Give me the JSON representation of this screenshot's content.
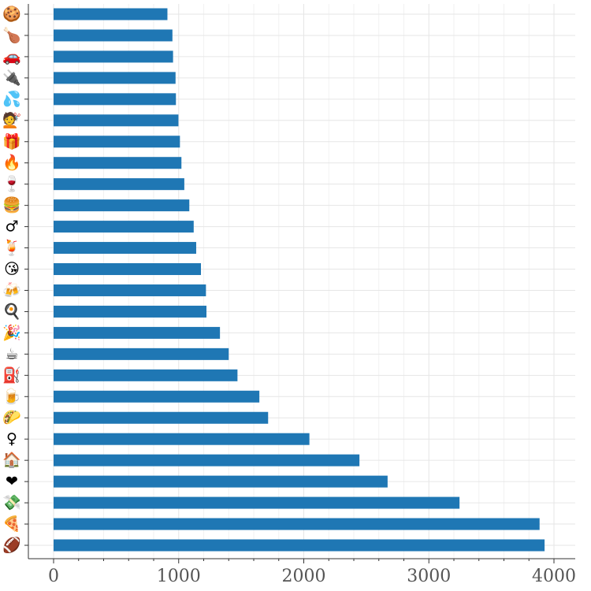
{
  "chart_data": {
    "type": "bar",
    "orientation": "horizontal",
    "title": "",
    "xlabel": "",
    "ylabel": "",
    "xlim": [
      0,
      4000
    ],
    "x_ticks": [
      0,
      1000,
      2000,
      3000,
      4000
    ],
    "x_tick_labels": [
      "0",
      "1000",
      "2000",
      "3000",
      "4000"
    ],
    "grid": true,
    "bar_color": "#1f77b4",
    "categories": [
      "🍪",
      "🍗",
      "🚗",
      "🔌",
      "💦",
      "💇",
      "🎁",
      "🔥",
      "🍷",
      "🍔",
      "♂",
      "🍹",
      "😘",
      "🍻",
      "🍳",
      "🎉",
      "☕",
      "⛽",
      "🍺",
      "🌮",
      "♀",
      "🏠",
      "❤",
      "💸",
      "🍕",
      "🏈"
    ],
    "values": [
      910,
      950,
      955,
      975,
      978,
      998,
      1010,
      1022,
      1045,
      1085,
      1120,
      1140,
      1178,
      1218,
      1222,
      1330,
      1400,
      1470,
      1645,
      1715,
      2045,
      2445,
      2670,
      3245,
      3885,
      3925
    ]
  }
}
